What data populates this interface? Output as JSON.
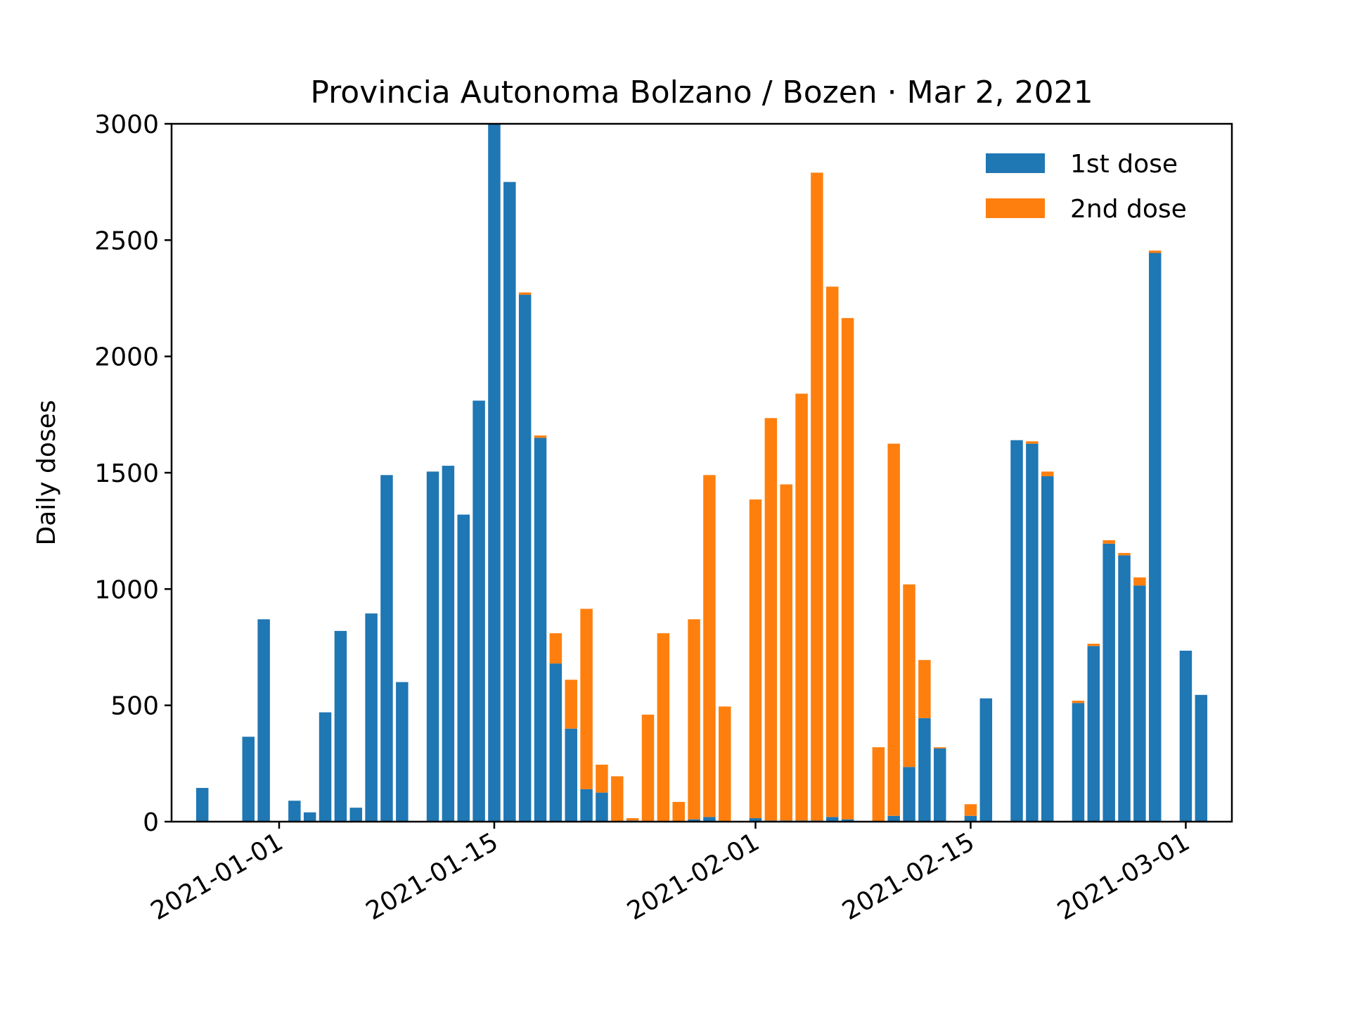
{
  "chart_data": {
    "type": "bar",
    "stacked": true,
    "title": "Provincia Autonoma Bolzano / Bozen · Mar 2, 2021",
    "xlabel": "",
    "ylabel": "Daily doses",
    "ylim": [
      0,
      3000
    ],
    "yticks": [
      0,
      500,
      1000,
      1500,
      2000,
      2500,
      3000
    ],
    "xlim": [
      "2020-12-25",
      "2021-03-04"
    ],
    "xticks": [
      "2021-01-01",
      "2021-01-15",
      "2021-02-01",
      "2021-02-15",
      "2021-03-01"
    ],
    "legend_position": "top-right",
    "grid": false,
    "x": [
      "2020-12-27",
      "2020-12-28",
      "2020-12-29",
      "2020-12-30",
      "2020-12-31",
      "2021-01-01",
      "2021-01-02",
      "2021-01-03",
      "2021-01-04",
      "2021-01-05",
      "2021-01-06",
      "2021-01-07",
      "2021-01-08",
      "2021-01-09",
      "2021-01-10",
      "2021-01-11",
      "2021-01-12",
      "2021-01-13",
      "2021-01-14",
      "2021-01-15",
      "2021-01-16",
      "2021-01-17",
      "2021-01-18",
      "2021-01-19",
      "2021-01-20",
      "2021-01-21",
      "2021-01-22",
      "2021-01-23",
      "2021-01-24",
      "2021-01-25",
      "2021-01-26",
      "2021-01-27",
      "2021-01-28",
      "2021-01-29",
      "2021-01-30",
      "2021-01-31",
      "2021-02-01",
      "2021-02-02",
      "2021-02-03",
      "2021-02-04",
      "2021-02-05",
      "2021-02-06",
      "2021-02-07",
      "2021-02-08",
      "2021-02-09",
      "2021-02-10",
      "2021-02-11",
      "2021-02-12",
      "2021-02-13",
      "2021-02-14",
      "2021-02-15",
      "2021-02-16",
      "2021-02-17",
      "2021-02-18",
      "2021-02-19",
      "2021-02-20",
      "2021-02-21",
      "2021-02-22",
      "2021-02-23",
      "2021-02-24",
      "2021-02-25",
      "2021-02-26",
      "2021-02-27",
      "2021-02-28",
      "2021-03-01",
      "2021-03-02"
    ],
    "series": [
      {
        "name": "1st dose",
        "color": "#1f77b4",
        "values": [
          145,
          0,
          0,
          365,
          870,
          0,
          90,
          40,
          470,
          820,
          60,
          895,
          1490,
          600,
          0,
          1505,
          1530,
          1320,
          1810,
          3010,
          2750,
          2265,
          1650,
          680,
          400,
          140,
          125,
          0,
          5,
          0,
          0,
          0,
          10,
          20,
          0,
          0,
          15,
          5,
          5,
          5,
          5,
          20,
          10,
          0,
          0,
          25,
          235,
          445,
          315,
          0,
          25,
          530,
          0,
          1640,
          1625,
          1485,
          0,
          510,
          755,
          1195,
          1145,
          1015,
          2445,
          0,
          735,
          545
        ]
      },
      {
        "name": "2nd dose",
        "color": "#ff7f0e",
        "values": [
          0,
          0,
          0,
          0,
          0,
          0,
          0,
          0,
          0,
          0,
          0,
          0,
          0,
          0,
          0,
          0,
          0,
          0,
          0,
          0,
          0,
          10,
          10,
          130,
          210,
          775,
          120,
          195,
          10,
          460,
          810,
          85,
          860,
          1470,
          495,
          0,
          1370,
          1730,
          1445,
          1835,
          2785,
          2280,
          2155,
          0,
          320,
          1600,
          785,
          250,
          5,
          0,
          50,
          0,
          0,
          0,
          10,
          20,
          0,
          10,
          10,
          15,
          10,
          35,
          10,
          0,
          0,
          0
        ]
      }
    ]
  }
}
